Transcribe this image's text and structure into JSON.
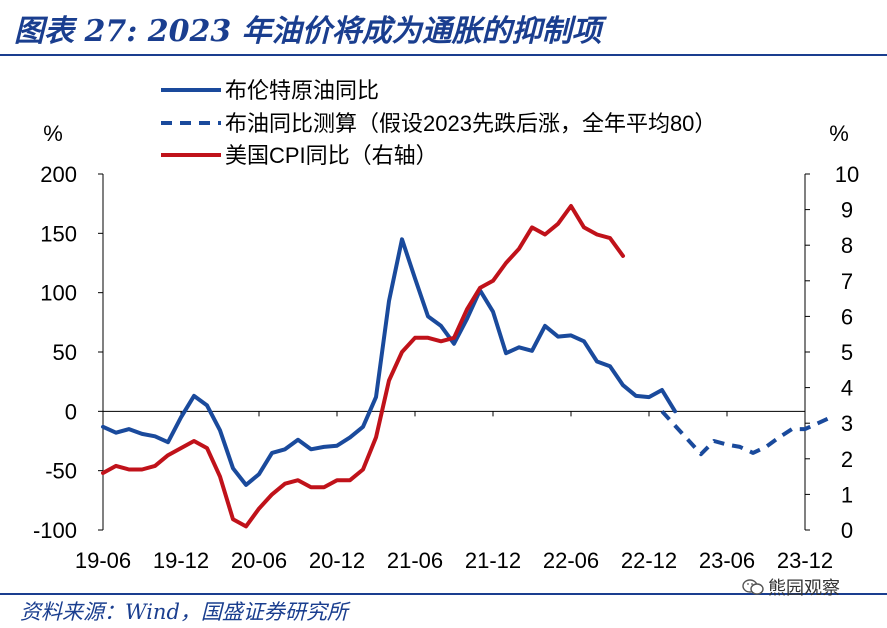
{
  "header": {
    "title": "图表 27:  2023 年油价将成为通胀的抑制项"
  },
  "footer": {
    "source": "资料来源：Wind，国盛证券研究所",
    "watermark": "熊园观察"
  },
  "chart_data": {
    "type": "line",
    "left_axis": {
      "unit": "%",
      "ylim": [
        -100,
        200
      ],
      "ticks": [
        "200",
        "150",
        "100",
        "50",
        "0",
        "-50",
        "-100"
      ]
    },
    "right_axis": {
      "unit": "%",
      "ylim": [
        0,
        10
      ],
      "ticks": [
        "10",
        "9",
        "8",
        "7",
        "6",
        "5",
        "4",
        "3",
        "2",
        "1",
        "0"
      ]
    },
    "x_ticks": [
      "19-06",
      "19-12",
      "20-06",
      "20-12",
      "21-06",
      "21-12",
      "22-06",
      "22-12",
      "23-06",
      "23-12"
    ],
    "legend": {
      "brent": "布伦特原油同比",
      "forecast": "布油同比测算（假设2023先跌后涨，全年平均80）",
      "cpi": "美国CPI同比（右轴）"
    },
    "series": [
      {
        "name": "布伦特原油同比",
        "axis": "left",
        "color": "#1a4a9c",
        "style": "solid",
        "start": "2019-06",
        "values": [
          -13,
          -18,
          -15,
          -19,
          -21,
          -26,
          -5,
          13,
          5,
          -16,
          -48,
          -62,
          -53,
          -35,
          -32,
          -24,
          -32,
          -30,
          -29,
          -22,
          -13,
          12,
          93,
          145,
          112,
          80,
          72,
          57,
          78,
          102,
          84,
          49,
          54,
          51,
          72,
          63,
          64,
          59,
          42,
          38,
          22,
          13,
          12,
          18,
          0
        ]
      },
      {
        "name": "布油同比测算（假设2023先跌后涨，全年平均80）",
        "axis": "left",
        "color": "#1a4a9c",
        "style": "dashed",
        "start": "2023-01",
        "values": [
          0,
          -12,
          -24,
          -36,
          -25,
          -28,
          -30,
          -35,
          -30,
          -22,
          -15,
          -15,
          -10,
          -5
        ]
      },
      {
        "name": "美国CPI同比（右轴）",
        "axis": "right",
        "color": "#c0121a",
        "style": "solid",
        "start": "2019-06",
        "values": [
          1.6,
          1.8,
          1.7,
          1.7,
          1.8,
          2.1,
          2.3,
          2.5,
          2.3,
          1.5,
          0.3,
          0.1,
          0.6,
          1.0,
          1.3,
          1.4,
          1.2,
          1.2,
          1.4,
          1.4,
          1.7,
          2.6,
          4.2,
          5.0,
          5.4,
          5.4,
          5.3,
          5.4,
          6.2,
          6.8,
          7.0,
          7.5,
          7.9,
          8.5,
          8.3,
          8.6,
          9.1,
          8.5,
          8.3,
          8.2,
          7.7
        ]
      }
    ]
  }
}
